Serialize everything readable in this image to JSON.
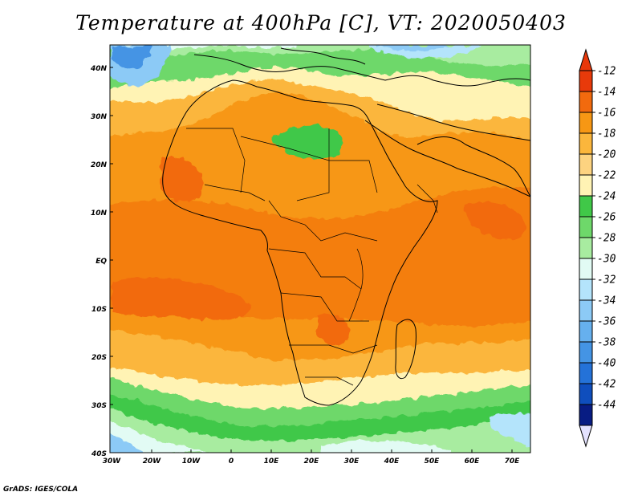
{
  "title": "Temperature at 400hPa [C], VT: 2020050403",
  "credit": "GrADS: IGES/COLA",
  "lat_labels": [
    "40N",
    "30N",
    "20N",
    "10N",
    "EQ",
    "10S",
    "20S",
    "30S",
    "40S"
  ],
  "lon_labels": [
    "30W",
    "20W",
    "10W",
    "0",
    "10E",
    "20E",
    "30E",
    "40E",
    "50E",
    "60E",
    "70E"
  ],
  "colorbar": {
    "labels": [
      "-12",
      "-14",
      "-16",
      "-18",
      "-20",
      "-22",
      "-24",
      "-26",
      "-28",
      "-30",
      "-32",
      "-34",
      "-36",
      "-38",
      "-40",
      "-42",
      "-44"
    ],
    "colors": [
      "#e83a0a",
      "#f26a0e",
      "#f79714",
      "#fbb63c",
      "#fdd380",
      "#fff3b4",
      "#40c848",
      "#6ed86a",
      "#a8eca0",
      "#e2fbf4",
      "#b4e4fb",
      "#8ccaf6",
      "#66b0ee",
      "#4494e4",
      "#2472d8",
      "#0f4ebd",
      "#081c83"
    ],
    "top_arrow_color": "#e8380a",
    "bottom_arrow_color": "#e4e2ff"
  }
}
